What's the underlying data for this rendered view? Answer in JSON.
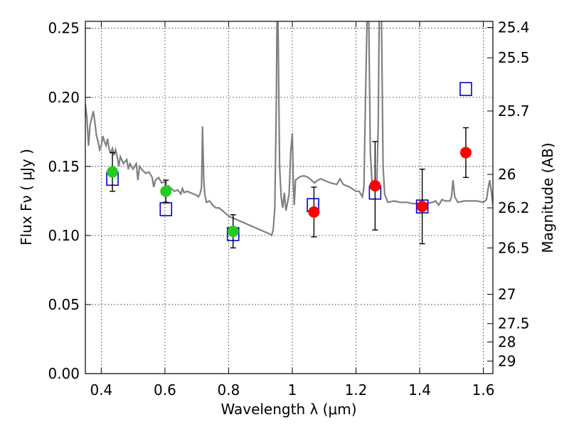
{
  "chart_data": {
    "type": "scatter",
    "xlabel": "Wavelength  λ (μm)",
    "ylabel": "Flux  Fν  ( μJy )",
    "ylabel_right": "Magnitude (AB)",
    "xlim": [
      0.35,
      1.63
    ],
    "ylim": [
      0,
      0.255
    ],
    "x_ticks": [
      {
        "value": 0.4,
        "label": "0.4"
      },
      {
        "value": 0.6,
        "label": "0.6"
      },
      {
        "value": 0.8,
        "label": "0.8"
      },
      {
        "value": 1.0,
        "label": "1"
      },
      {
        "value": 1.2,
        "label": "1.2"
      },
      {
        "value": 1.4,
        "label": "1.4"
      },
      {
        "value": 1.6,
        "label": "1.6"
      }
    ],
    "y_ticks": [
      {
        "value": 0.0,
        "label": "0.00"
      },
      {
        "value": 0.05,
        "label": "0.05"
      },
      {
        "value": 0.1,
        "label": "0.10"
      },
      {
        "value": 0.15,
        "label": "0.15"
      },
      {
        "value": 0.2,
        "label": "0.20"
      },
      {
        "value": 0.25,
        "label": "0.25"
      }
    ],
    "right_ticks": [
      {
        "label": "25.4",
        "flux": 0.2506
      },
      {
        "label": "25.5",
        "flux": 0.2286
      },
      {
        "label": "25.7",
        "flux": 0.1901
      },
      {
        "label": "26",
        "flux": 0.1442
      },
      {
        "label": "26.2",
        "flux": 0.12
      },
      {
        "label": "26.5",
        "flux": 0.091
      },
      {
        "label": "27",
        "flux": 0.0574
      },
      {
        "label": "27.5",
        "flux": 0.0362
      },
      {
        "label": "28",
        "flux": 0.0229
      },
      {
        "label": "29",
        "flux": 0.0091
      }
    ],
    "grid": true,
    "model_spectrum": {
      "color": "#808080",
      "points": [
        [
          0.35,
          0.195
        ],
        [
          0.355,
          0.185
        ],
        [
          0.36,
          0.165
        ],
        [
          0.365,
          0.18
        ],
        [
          0.37,
          0.185
        ],
        [
          0.375,
          0.19
        ],
        [
          0.38,
          0.182
        ],
        [
          0.385,
          0.172
        ],
        [
          0.39,
          0.168
        ],
        [
          0.395,
          0.162
        ],
        [
          0.4,
          0.165
        ],
        [
          0.405,
          0.172
        ],
        [
          0.41,
          0.168
        ],
        [
          0.415,
          0.165
        ],
        [
          0.42,
          0.17
        ],
        [
          0.425,
          0.162
        ],
        [
          0.43,
          0.16
        ],
        [
          0.435,
          0.163
        ],
        [
          0.44,
          0.158
        ],
        [
          0.445,
          0.162
        ],
        [
          0.45,
          0.157
        ],
        [
          0.455,
          0.15
        ],
        [
          0.46,
          0.157
        ],
        [
          0.47,
          0.152
        ],
        [
          0.48,
          0.155
        ],
        [
          0.485,
          0.148
        ],
        [
          0.49,
          0.152
        ],
        [
          0.5,
          0.148
        ],
        [
          0.51,
          0.152
        ],
        [
          0.515,
          0.14
        ],
        [
          0.52,
          0.15
        ],
        [
          0.53,
          0.147
        ],
        [
          0.54,
          0.145
        ],
        [
          0.55,
          0.146
        ],
        [
          0.56,
          0.142
        ],
        [
          0.565,
          0.135
        ],
        [
          0.57,
          0.14
        ],
        [
          0.58,
          0.142
        ],
        [
          0.59,
          0.138
        ],
        [
          0.6,
          0.139
        ],
        [
          0.605,
          0.132
        ],
        [
          0.61,
          0.136
        ],
        [
          0.62,
          0.134
        ],
        [
          0.63,
          0.132
        ],
        [
          0.64,
          0.133
        ],
        [
          0.65,
          0.13
        ],
        [
          0.655,
          0.134
        ],
        [
          0.66,
          0.131
        ],
        [
          0.67,
          0.132
        ],
        [
          0.68,
          0.131
        ],
        [
          0.69,
          0.13
        ],
        [
          0.7,
          0.129
        ],
        [
          0.705,
          0.128
        ],
        [
          0.71,
          0.13
        ],
        [
          0.715,
          0.135
        ],
        [
          0.718,
          0.179
        ],
        [
          0.722,
          0.14
        ],
        [
          0.725,
          0.13
        ],
        [
          0.73,
          0.124
        ],
        [
          0.74,
          0.125
        ],
        [
          0.75,
          0.122
        ],
        [
          0.76,
          0.12
        ],
        [
          0.77,
          0.12
        ],
        [
          0.78,
          0.118
        ],
        [
          0.79,
          0.116
        ],
        [
          0.8,
          0.114
        ],
        [
          0.81,
          0.113
        ],
        [
          0.82,
          0.112
        ],
        [
          0.83,
          0.111
        ],
        [
          0.84,
          0.11
        ],
        [
          0.85,
          0.109
        ],
        [
          0.86,
          0.108
        ],
        [
          0.87,
          0.107
        ],
        [
          0.88,
          0.106
        ],
        [
          0.89,
          0.105
        ],
        [
          0.9,
          0.104
        ],
        [
          0.91,
          0.103
        ],
        [
          0.92,
          0.102
        ],
        [
          0.93,
          0.101
        ],
        [
          0.935,
          0.1
        ],
        [
          0.94,
          0.104
        ],
        [
          0.945,
          0.12
        ],
        [
          0.95,
          0.2
        ],
        [
          0.952,
          0.26
        ],
        [
          0.955,
          0.26
        ],
        [
          0.96,
          0.15
        ],
        [
          0.965,
          0.128
        ],
        [
          0.97,
          0.12
        ],
        [
          0.975,
          0.131
        ],
        [
          0.98,
          0.118
        ],
        [
          0.985,
          0.124
        ],
        [
          0.99,
          0.13
        ],
        [
          0.995,
          0.16
        ],
        [
          1.0,
          0.174
        ],
        [
          1.003,
          0.14
        ],
        [
          1.006,
          0.122
        ],
        [
          1.01,
          0.14
        ],
        [
          1.02,
          0.142
        ],
        [
          1.03,
          0.143
        ],
        [
          1.04,
          0.143
        ],
        [
          1.05,
          0.142
        ],
        [
          1.06,
          0.14
        ],
        [
          1.07,
          0.138
        ],
        [
          1.08,
          0.14
        ],
        [
          1.09,
          0.141
        ],
        [
          1.1,
          0.14
        ],
        [
          1.12,
          0.138
        ],
        [
          1.14,
          0.137
        ],
        [
          1.15,
          0.141
        ],
        [
          1.16,
          0.137
        ],
        [
          1.18,
          0.135
        ],
        [
          1.2,
          0.132
        ],
        [
          1.21,
          0.132
        ],
        [
          1.22,
          0.128
        ],
        [
          1.225,
          0.135
        ],
        [
          1.23,
          0.2
        ],
        [
          1.235,
          0.26
        ],
        [
          1.24,
          0.26
        ],
        [
          1.245,
          0.16
        ],
        [
          1.25,
          0.14
        ],
        [
          1.26,
          0.132
        ],
        [
          1.265,
          0.135
        ],
        [
          1.27,
          0.18
        ],
        [
          1.273,
          0.26
        ],
        [
          1.28,
          0.26
        ],
        [
          1.285,
          0.15
        ],
        [
          1.29,
          0.13
        ],
        [
          1.3,
          0.124
        ],
        [
          1.32,
          0.125
        ],
        [
          1.34,
          0.124
        ],
        [
          1.36,
          0.124
        ],
        [
          1.38,
          0.123
        ],
        [
          1.4,
          0.123
        ],
        [
          1.42,
          0.123
        ],
        [
          1.44,
          0.124
        ],
        [
          1.45,
          0.125
        ],
        [
          1.46,
          0.122
        ],
        [
          1.47,
          0.126
        ],
        [
          1.48,
          0.125
        ],
        [
          1.495,
          0.125
        ],
        [
          1.5,
          0.128
        ],
        [
          1.505,
          0.14
        ],
        [
          1.51,
          0.128
        ],
        [
          1.52,
          0.124
        ],
        [
          1.54,
          0.125
        ],
        [
          1.56,
          0.125
        ],
        [
          1.58,
          0.125
        ],
        [
          1.6,
          0.124
        ],
        [
          1.61,
          0.126
        ],
        [
          1.615,
          0.134
        ],
        [
          1.62,
          0.14
        ],
        [
          1.625,
          0.132
        ],
        [
          1.63,
          0.122
        ]
      ]
    },
    "model_points": {
      "color": "#0000cc",
      "points": [
        {
          "x": 0.435,
          "y": 0.141
        },
        {
          "x": 0.603,
          "y": 0.119
        },
        {
          "x": 0.814,
          "y": 0.101
        },
        {
          "x": 1.065,
          "y": 0.122
        },
        {
          "x": 1.26,
          "y": 0.131
        },
        {
          "x": 1.408,
          "y": 0.121
        },
        {
          "x": 1.545,
          "y": 0.206
        }
      ]
    },
    "observed_optical": {
      "color": "#22cc22",
      "points": [
        {
          "x": 0.435,
          "y": 0.146,
          "err": 0.014
        },
        {
          "x": 0.603,
          "y": 0.132,
          "err": 0.008
        },
        {
          "x": 0.814,
          "y": 0.103,
          "err": 0.012
        }
      ]
    },
    "observed_nir": {
      "color": "#ff0000",
      "points": [
        {
          "x": 1.068,
          "y": 0.117,
          "err": 0.018
        },
        {
          "x": 1.26,
          "y": 0.136,
          "err": 0.032
        },
        {
          "x": 1.408,
          "y": 0.121,
          "err": 0.027
        },
        {
          "x": 1.545,
          "y": 0.16,
          "err": 0.018
        }
      ]
    }
  }
}
